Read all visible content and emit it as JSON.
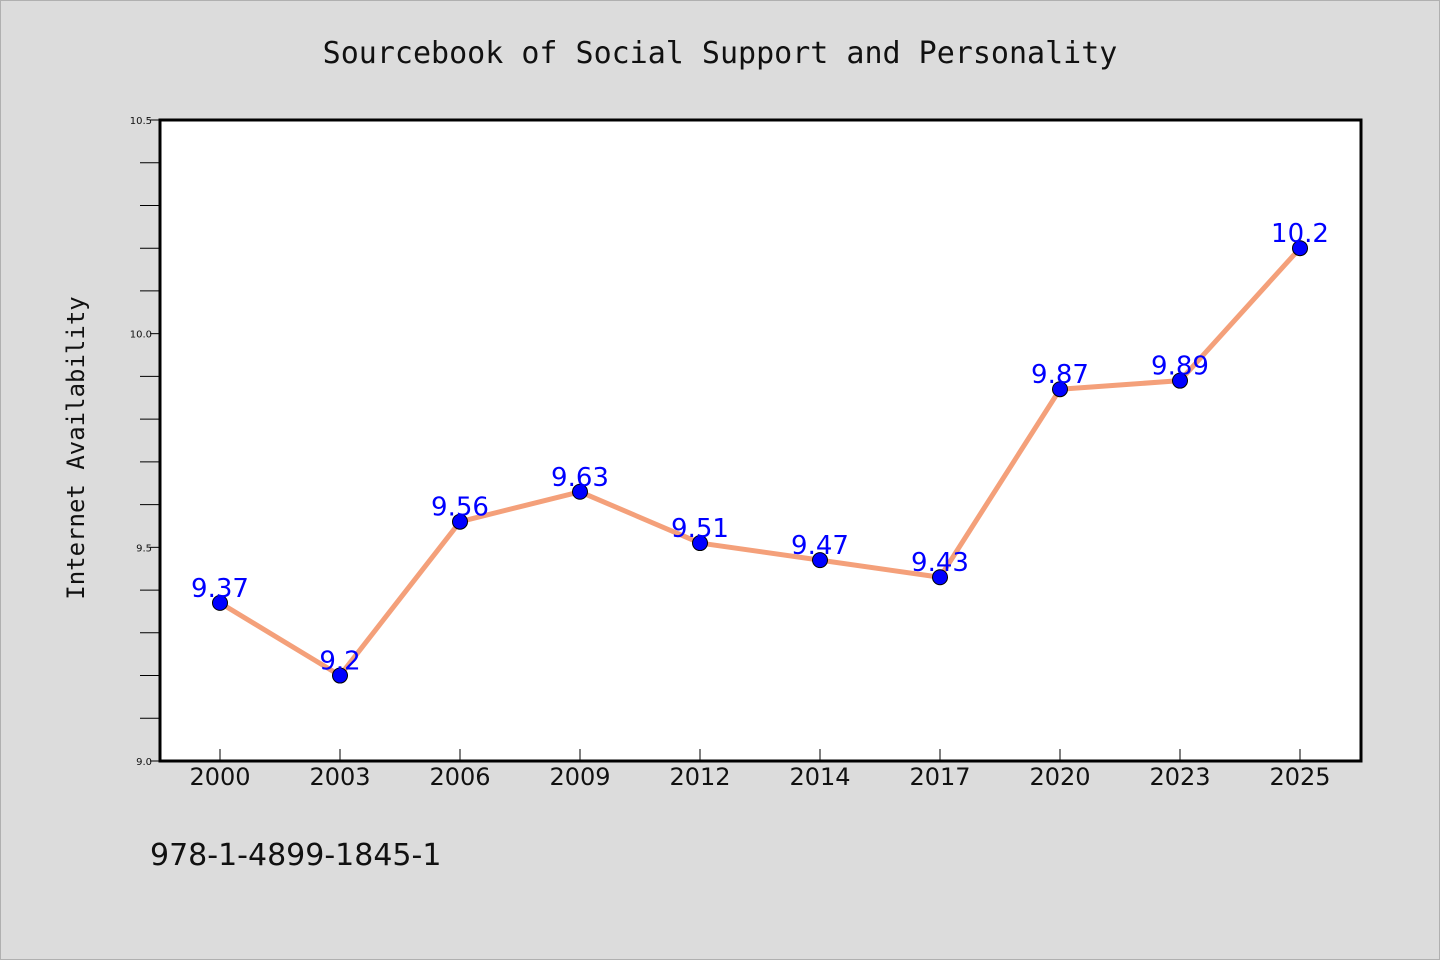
{
  "chart_data": {
    "type": "line",
    "title": "Sourcebook of Social Support and Personality",
    "xlabel": "",
    "ylabel": "Internet Availability",
    "categories": [
      "2000",
      "2003",
      "2006",
      "2009",
      "2012",
      "2014",
      "2017",
      "2020",
      "2023",
      "2025"
    ],
    "series": [
      {
        "values": [
          9.37,
          9.2,
          9.56,
          9.63,
          9.51,
          9.47,
          9.43,
          9.87,
          9.89,
          10.2
        ],
        "data_labels": [
          "9.37",
          "9.2",
          "9.56",
          "9.63",
          "9.51",
          "9.47",
          "9.43",
          "9.87",
          "9.89",
          "10.2"
        ]
      }
    ],
    "ylim": [
      9.0,
      10.5
    ],
    "yticks": [
      "9.0",
      "9.5",
      "10.0",
      "10.5"
    ],
    "grid": false,
    "line_color": "#f4a07a",
    "marker_color": "#0000ff",
    "label_color": "#0000ff"
  },
  "footer": {
    "isbn": "978-1-4899-1845-1"
  }
}
